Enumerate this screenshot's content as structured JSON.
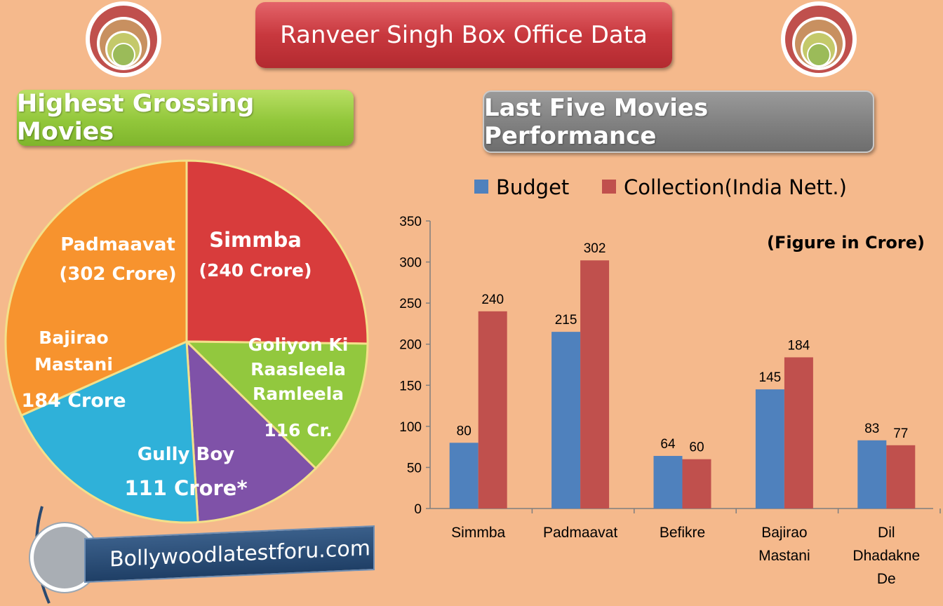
{
  "title": "Ranveer Singh Box Office Data",
  "pie_heading": "Highest Grossing Movies",
  "bar_heading": "Last Five Movies Performance",
  "website": "Bollywoodlatestforu.com",
  "colors": {
    "background": "#f5b98c",
    "budget": "#4f81bd",
    "collection": "#c0504d"
  },
  "chart_data": [
    {
      "type": "pie",
      "title": "Highest Grossing Movies",
      "slices": [
        {
          "name": "Simmba",
          "lines": [
            "Simmba",
            "(240 Crore)"
          ],
          "value": 240,
          "color": "#d83c3c"
        },
        {
          "name": "Goliyon Ki Raasleela Ramleela",
          "lines": [
            "Goliyon Ki",
            "Raasleela",
            "Ramleela",
            "116 Cr."
          ],
          "value": 116,
          "color": "#92c83e"
        },
        {
          "name": "Gully Boy",
          "lines": [
            "Gully Boy",
            "111 Crore*"
          ],
          "value": 111,
          "color": "#7f52a8"
        },
        {
          "name": "Bajirao Mastani",
          "lines": [
            "Bajirao",
            "Mastani",
            "184 Crore"
          ],
          "value": 184,
          "color": "#2fb1d9"
        },
        {
          "name": "Padmaavat",
          "lines": [
            "Padmaavat",
            "(302 Crore)"
          ],
          "value": 302,
          "color": "#f7932e"
        }
      ]
    },
    {
      "type": "bar",
      "title": "Last Five Movies Performance",
      "annotation": "(Figure in Crore)",
      "categories": [
        "Simmba",
        "Padmaavat",
        "Befikre",
        "Bajirao Mastani",
        "Dil Dhadakne De"
      ],
      "category_lines": [
        [
          "Simmba"
        ],
        [
          "Padmaavat"
        ],
        [
          "Befikre"
        ],
        [
          "Bajirao",
          "Mastani"
        ],
        [
          "Dil",
          "Dhadakne",
          "De"
        ]
      ],
      "series": [
        {
          "name": "Budget",
          "values": [
            80,
            215,
            64,
            145,
            83
          ],
          "color": "#4f81bd"
        },
        {
          "name": "Collection(India Nett.)",
          "values": [
            240,
            302,
            60,
            184,
            77
          ],
          "color": "#c0504d"
        }
      ],
      "ylim": [
        0,
        350
      ],
      "yticks": [
        "0",
        "50",
        "100",
        "150",
        "200",
        "250",
        "300",
        "350"
      ],
      "grid": false,
      "legend": "top"
    }
  ]
}
